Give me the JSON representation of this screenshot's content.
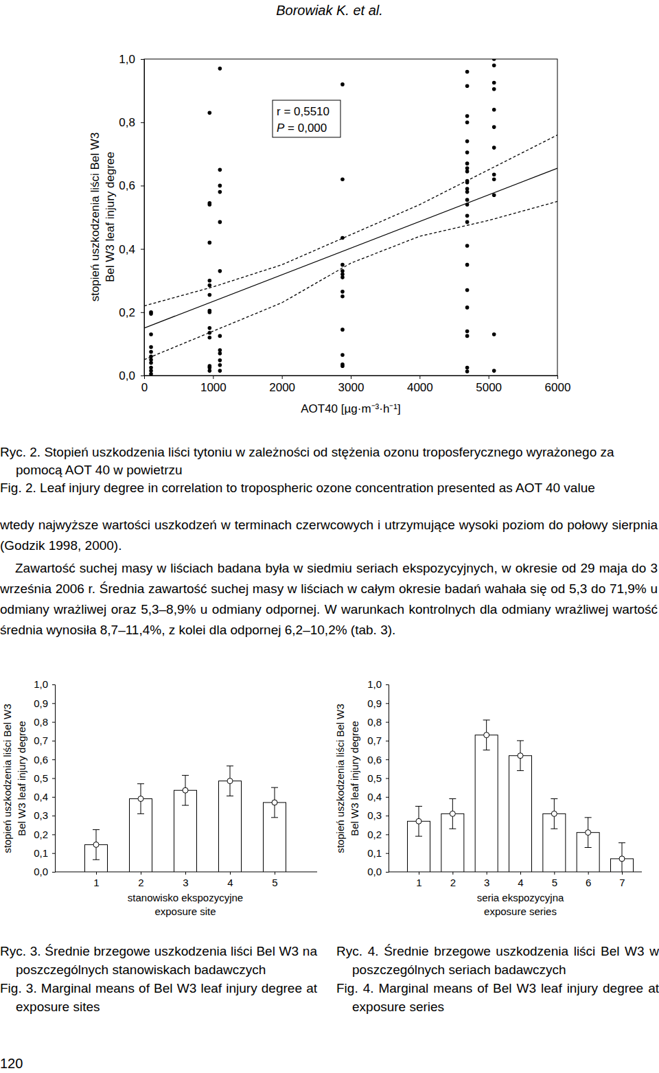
{
  "header": "Borowiak K. et al.",
  "chart_data": [
    {
      "type": "scatter",
      "xlabel": "AOT40 [µg·m⁻³·h⁻¹]",
      "ylabel": [
        "stopień uszkodzenia liści Bel W3",
        "Bel W3 leaf injury degree"
      ],
      "annotations": [
        "r = 0,5510",
        "P = 0,000"
      ],
      "color": "#000000",
      "marker": "circle",
      "x": [
        100,
        100,
        100,
        100,
        100,
        100,
        100,
        100,
        100,
        100,
        100,
        950,
        950,
        950,
        950,
        950,
        950,
        950,
        950,
        950,
        950,
        950,
        950,
        950,
        950,
        950,
        1100,
        1100,
        1100,
        1100,
        1100,
        1100,
        1100,
        1100,
        1100,
        1100,
        1100,
        1100,
        2880,
        2880,
        2880,
        2880,
        2880,
        2880,
        2880,
        2880,
        2880,
        2880,
        2880,
        2880,
        2880,
        4690,
        4690,
        4690,
        4690,
        4690,
        4690,
        4690,
        4690,
        4690,
        4690,
        4690,
        4690,
        4690,
        4690,
        4690,
        4690,
        4690,
        4690,
        4690,
        4690,
        4690,
        4690,
        4690,
        4690,
        4690,
        5080,
        5080,
        5080,
        5080,
        5080,
        5080,
        5080,
        5080,
        5080,
        5080,
        5080,
        5080
      ],
      "values": [
        0.2,
        0.195,
        0.13,
        0.09,
        0.075,
        0.06,
        0.05,
        0.04,
        0.025,
        0.015,
        0.005,
        0.83,
        0.545,
        0.54,
        0.42,
        0.3,
        0.285,
        0.255,
        0.205,
        0.2,
        0.15,
        0.135,
        0.12,
        0.03,
        0.025,
        0.015,
        0.97,
        0.65,
        0.6,
        0.58,
        0.485,
        0.33,
        0.125,
        0.08,
        0.07,
        0.048,
        0.033,
        0.015,
        0.92,
        0.62,
        0.435,
        0.35,
        0.33,
        0.32,
        0.31,
        0.265,
        0.25,
        0.145,
        0.065,
        0.035,
        0.03,
        0.96,
        0.915,
        0.82,
        0.8,
        0.74,
        0.705,
        0.67,
        0.655,
        0.645,
        0.615,
        0.61,
        0.59,
        0.58,
        0.555,
        0.54,
        0.505,
        0.485,
        0.41,
        0.35,
        0.27,
        0.215,
        0.14,
        0.125,
        0.025,
        0.013,
        1.0,
        0.98,
        0.925,
        0.905,
        0.84,
        0.785,
        0.72,
        0.635,
        0.62,
        0.57,
        0.13,
        0.015
      ],
      "fit": {
        "x": [
          0,
          6000
        ],
        "values": [
          0.15,
          0.655
        ],
        "line_style": "solid"
      },
      "fit_upper": {
        "x": [
          0,
          1000,
          2000,
          3000,
          4000,
          5000,
          6000
        ],
        "values": [
          0.22,
          0.28,
          0.35,
          0.445,
          0.54,
          0.65,
          0.76
        ],
        "line_style": "dashed"
      },
      "fit_lower": {
        "x": [
          0,
          1000,
          2000,
          3000,
          4000,
          5000,
          6000
        ],
        "values": [
          0.05,
          0.14,
          0.23,
          0.355,
          0.44,
          0.49,
          0.55
        ],
        "line_style": "dashed"
      },
      "xlim": [
        0,
        6000
      ],
      "xticks": [
        0,
        1000,
        2000,
        3000,
        4000,
        5000,
        6000
      ],
      "ylim": [
        0,
        1
      ],
      "yticks": [
        {
          "value": 0,
          "label": "0,0"
        },
        {
          "value": 0.2,
          "label": "0,2"
        },
        {
          "value": 0.4,
          "label": "0,4"
        },
        {
          "value": 0.6,
          "label": "0,6"
        },
        {
          "value": 0.8,
          "label": "0,8"
        },
        {
          "value": 1,
          "label": "1,0"
        }
      ]
    },
    {
      "type": "bar",
      "xlabel": [
        "stanowisko ekspozycyjne",
        "exposure site"
      ],
      "ylabel": [
        "stopień uszkodzenia liści Bel W3",
        "Bel W3 leaf injury degree"
      ],
      "categories": [
        "1",
        "2",
        "3",
        "4",
        "5"
      ],
      "values": [
        0.145,
        0.39,
        0.435,
        0.485,
        0.37
      ],
      "errors": [
        0.08,
        0.08,
        0.08,
        0.08,
        0.08
      ],
      "color": "#ffffff",
      "marker": "circle",
      "ylim": [
        0,
        1
      ],
      "yticks": [
        {
          "value": 0,
          "label": "0,0"
        },
        {
          "value": 0.1,
          "label": "0,1"
        },
        {
          "value": 0.2,
          "label": "0,2"
        },
        {
          "value": 0.3,
          "label": "0,3"
        },
        {
          "value": 0.4,
          "label": "0,4"
        },
        {
          "value": 0.5,
          "label": "0,5"
        },
        {
          "value": 0.6,
          "label": "0,6"
        },
        {
          "value": 0.7,
          "label": "0,7"
        },
        {
          "value": 0.8,
          "label": "0,8"
        },
        {
          "value": 0.9,
          "label": "0,9"
        },
        {
          "value": 1,
          "label": "1,0"
        }
      ]
    },
    {
      "type": "bar",
      "xlabel": [
        "seria ekspozycyjna",
        "exposure series"
      ],
      "ylabel": [
        "stopień uszkodzenia liści Bel W3",
        "Bel W3 leaf injury degree"
      ],
      "categories": [
        "1",
        "2",
        "3",
        "4",
        "5",
        "6",
        "7"
      ],
      "values": [
        0.27,
        0.31,
        0.73,
        0.62,
        0.31,
        0.21,
        0.07
      ],
      "errors": [
        0.08,
        0.08,
        0.08,
        0.08,
        0.08,
        0.08,
        0.085
      ],
      "color": "#ffffff",
      "marker": "circle",
      "ylim": [
        0,
        1
      ],
      "yticks": [
        {
          "value": 0,
          "label": "0,0"
        },
        {
          "value": 0.1,
          "label": "0,1"
        },
        {
          "value": 0.2,
          "label": "0,2"
        },
        {
          "value": 0.3,
          "label": "0,3"
        },
        {
          "value": 0.4,
          "label": "0,4"
        },
        {
          "value": 0.5,
          "label": "0,5"
        },
        {
          "value": 0.6,
          "label": "0,6"
        },
        {
          "value": 0.7,
          "label": "0,7"
        },
        {
          "value": 0.8,
          "label": "0,8"
        },
        {
          "value": 0.9,
          "label": "0,9"
        },
        {
          "value": 1,
          "label": "1,0"
        }
      ]
    }
  ],
  "captions": [
    {
      "pl": "Ryc. 2. Stopień uszkodzenia liści tytoniu w zależności od stężenia ozonu troposferycznego wyrażonego za pomocą AOT 40 w powietrzu",
      "en": "Fig. 2. Leaf injury degree in correlation to tropospheric ozone concentration presented as AOT 40 value"
    },
    {
      "pl": "Ryc. 3. Średnie brzegowe uszkodzenia liści Bel W3 na poszczególnych stanowiskach badawczych",
      "en": "Fig. 3. Marginal means of Bel W3 leaf injury degree at exposure sites"
    },
    {
      "pl": "Ryc. 4. Średnie brzegowe uszkodzenia liści Bel W3 w poszczególnych seriach badawczych",
      "en": "Fig. 4. Marginal means of Bel W3 leaf injury degree at exposure series"
    }
  ],
  "body": [
    "wtedy najwyższe wartości uszkodzeń w terminach czerwcowych i utrzymujące wysoki poziom do połowy sierpnia (Godzik 1998, 2000).",
    "Zawartość suchej masy w liściach badana była w siedmiu seriach ekspozycyjnych, w okresie od 29 maja do 3 września 2006 r. Średnia zawartość suchej masy w liściach w całym okresie badań wahała się od 5,3 do 71,9% u odmiany wrażliwej oraz 5,3–8,9% u odmiany odpornej. W warunkach kontrolnych dla odmiany wrażliwej wartość średnia wynosiła 8,7–11,4%, z kolei dla odpornej 6,2–10,2% (tab. 3)."
  ],
  "page_number": "120"
}
